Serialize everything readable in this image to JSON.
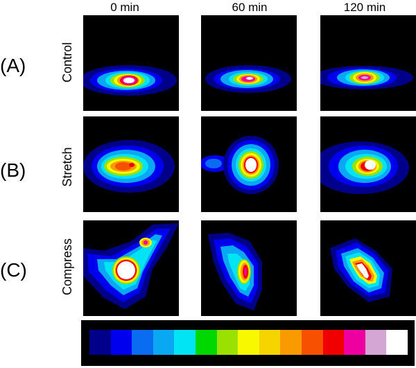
{
  "column_headers": [
    "0 min",
    "60 min",
    "120 min"
  ],
  "rows": [
    {
      "letter": "(A)",
      "condition": "Control"
    },
    {
      "letter": "(B)",
      "condition": "Stretch"
    },
    {
      "letter": "(C)",
      "condition": "Compress"
    }
  ],
  "colormap": [
    "#00008b",
    "#0000ee",
    "#0a6cf0",
    "#0aa8f2",
    "#00e4f4",
    "#00d800",
    "#9ae000",
    "#f8f800",
    "#f6d400",
    "#f89a00",
    "#f65000",
    "#f00000",
    "#ee00a0",
    "#d4a6d4",
    "#ffffff"
  ]
}
